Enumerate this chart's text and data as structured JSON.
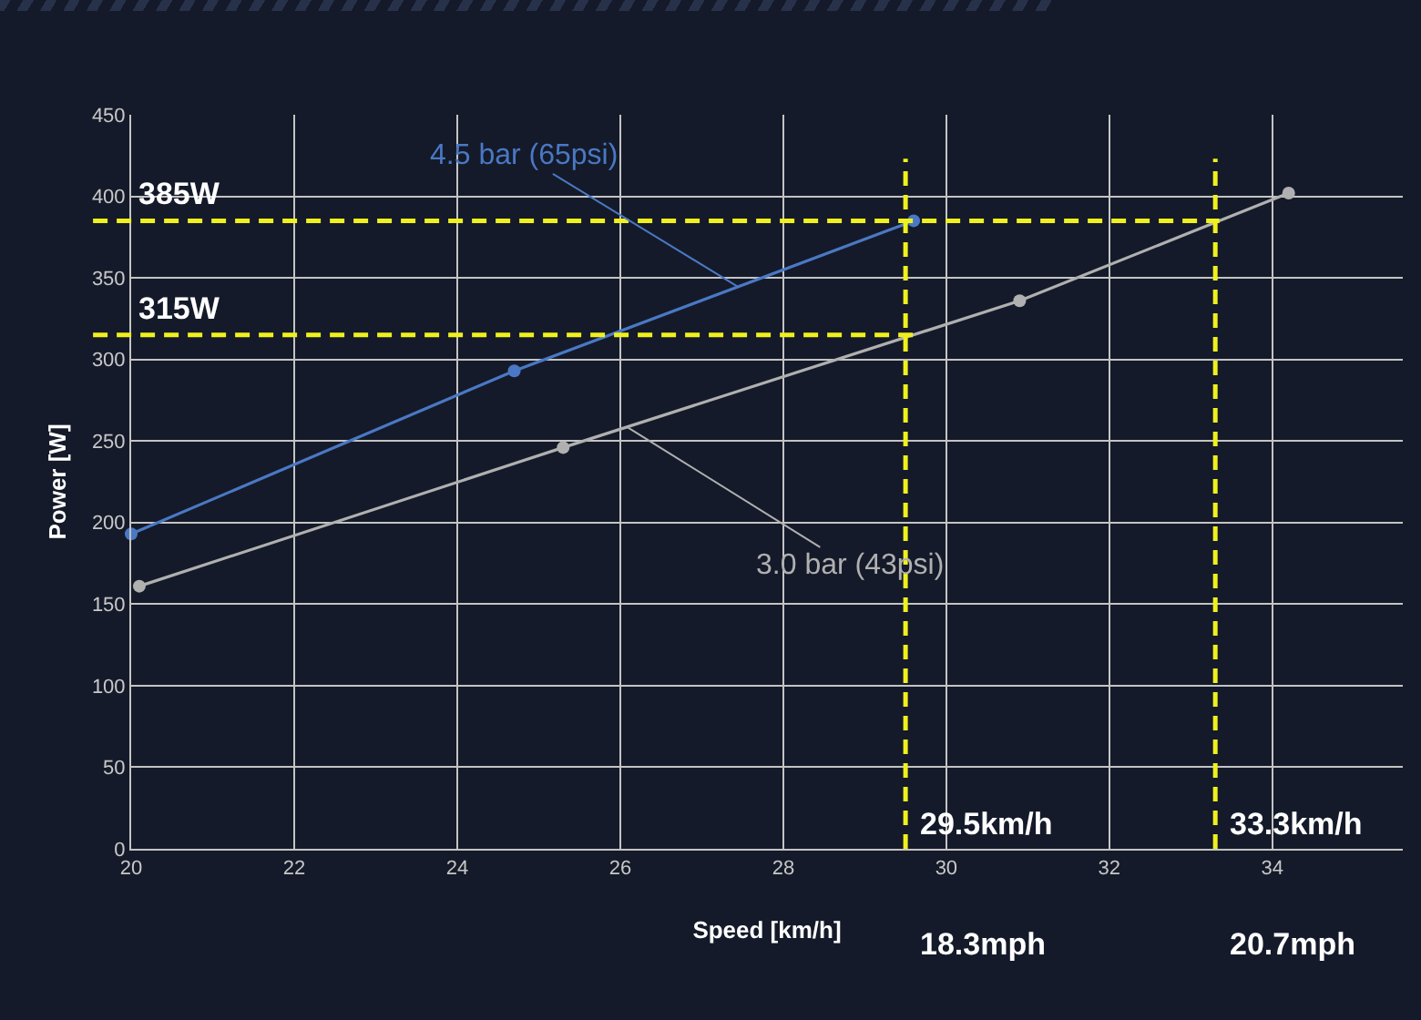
{
  "chart_data": {
    "type": "line",
    "xlabel": "Speed [km/h]",
    "ylabel": "Power [W]",
    "series": [
      {
        "name": "4.5 bar (65psi)",
        "color": "#4a78c4",
        "x": [
          20,
          24.7,
          29.6
        ],
        "values": [
          193,
          293,
          385
        ]
      },
      {
        "name": "3.0 bar (43psi)",
        "color": "#b0b0b0",
        "x": [
          20.1,
          25.3,
          30.9,
          34.2
        ],
        "values": [
          161,
          246,
          336,
          402
        ]
      }
    ],
    "xlim": [
      20,
      35.6
    ],
    "xticks": [
      20,
      22,
      24,
      26,
      28,
      30,
      32,
      34
    ],
    "ylim": [
      0,
      450
    ],
    "yticks": [
      0,
      50,
      100,
      150,
      200,
      250,
      300,
      350,
      400,
      450
    ],
    "grid": true,
    "legend": false,
    "marker": "circle",
    "line_style": "solid",
    "ref_lines": [
      {
        "axis": "y",
        "value": 385,
        "label": "385W",
        "color": "#f0f01e",
        "line_style": "dashed"
      },
      {
        "axis": "y",
        "value": 315,
        "label": "315W",
        "color": "#f0f01e",
        "line_style": "dashed"
      },
      {
        "axis": "x",
        "value": 29.5,
        "label": "29.5km/h",
        "color": "#f0f01e",
        "line_style": "dashed"
      },
      {
        "axis": "x",
        "value": 33.3,
        "label": "33.3km/h",
        "color": "#f0f01e",
        "line_style": "dashed"
      }
    ],
    "annotations": [
      "18.3mph",
      "20.7mph"
    ]
  }
}
